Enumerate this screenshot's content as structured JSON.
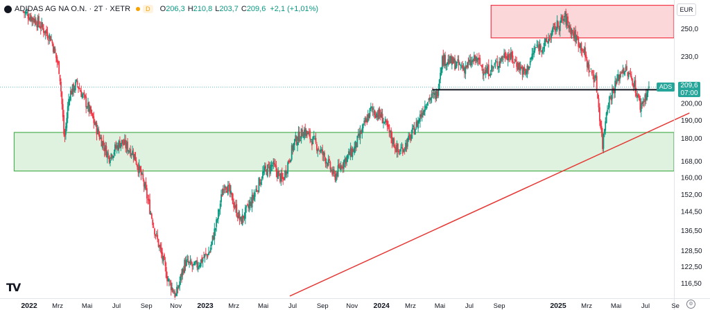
{
  "header": {
    "title": "ADIDAS AG NA O.N. · 2T · XETR",
    "badge": "D",
    "o_label": "O",
    "o_value": "206,3",
    "h_label": "H",
    "h_value": "210,8",
    "l_label": "L",
    "l_value": "203,7",
    "c_label": "C",
    "c_value": "209,6",
    "change": "+2,1 (+1,01%)"
  },
  "currency": "EUR",
  "price_tag": {
    "symbol": "ADS",
    "price": "209,6",
    "time": "07:00"
  },
  "colors": {
    "up": "#089981",
    "down": "#f23645",
    "green_zone": "#4caf50",
    "red_zone": "#f23645",
    "support": "#131722",
    "trend": "#e53935"
  },
  "chart_data": {
    "type": "candlestick",
    "y_axis_labels": [
      "250,0",
      "230,0",
      "200,00",
      "190,00",
      "180,00",
      "168,00",
      "160,00",
      "152,00",
      "144,50",
      "136,50",
      "128,50",
      "122,50",
      "116,50"
    ],
    "y_axis_values": [
      250,
      230,
      200,
      190,
      180,
      168,
      160,
      152,
      144.5,
      136.5,
      128.5,
      122.5,
      116.5
    ],
    "y_scale": "log",
    "x_axis_labels": [
      "2022",
      "Mrz",
      "Mai",
      "Jul",
      "Sep",
      "Nov",
      "2023",
      "Mrz",
      "Mai",
      "Jul",
      "Sep",
      "Nov",
      "2024",
      "Mrz",
      "Mai",
      "Jul",
      "Sep",
      "2025",
      "Mrz",
      "Mai",
      "Jul",
      "Se"
    ],
    "x_axis_bold": [
      "2022",
      "2023",
      "2024",
      "2025"
    ],
    "x_axis_dates": [
      "2022-01-01",
      "2022-03-01",
      "2022-05-01",
      "2022-07-01",
      "2022-09-01",
      "2022-11-01",
      "2023-01-01",
      "2023-03-01",
      "2023-05-01",
      "2023-07-01",
      "2023-09-01",
      "2023-11-01",
      "2024-01-01",
      "2024-03-01",
      "2024-05-01",
      "2024-07-01",
      "2024-09-01",
      "2025-01-01",
      "2025-03-01",
      "2025-05-01",
      "2025-07-01",
      "2025-09-01"
    ],
    "path_points": [
      [
        "2021-12-20",
        263
      ],
      [
        "2022-01-15",
        256
      ],
      [
        "2022-02-15",
        243
      ],
      [
        "2022-03-05",
        220
      ],
      [
        "2022-03-15",
        178
      ],
      [
        "2022-03-25",
        205
      ],
      [
        "2022-04-10",
        212
      ],
      [
        "2022-05-05",
        196
      ],
      [
        "2022-05-25",
        182
      ],
      [
        "2022-06-15",
        170
      ],
      [
        "2022-07-10",
        178
      ],
      [
        "2022-08-05",
        172
      ],
      [
        "2022-08-25",
        158
      ],
      [
        "2022-09-20",
        135
      ],
      [
        "2022-10-15",
        118
      ],
      [
        "2022-11-01",
        112
      ],
      [
        "2022-11-20",
        124
      ],
      [
        "2022-12-10",
        122
      ],
      [
        "2023-01-10",
        128
      ],
      [
        "2023-01-25",
        140
      ],
      [
        "2023-02-10",
        158
      ],
      [
        "2023-02-25",
        150
      ],
      [
        "2023-03-15",
        140
      ],
      [
        "2023-04-05",
        148
      ],
      [
        "2023-05-01",
        162
      ],
      [
        "2023-05-20",
        166
      ],
      [
        "2023-06-10",
        158
      ],
      [
        "2023-07-05",
        178
      ],
      [
        "2023-07-25",
        184
      ],
      [
        "2023-08-20",
        176
      ],
      [
        "2023-09-10",
        168
      ],
      [
        "2023-09-25",
        160
      ],
      [
        "2023-10-15",
        168
      ],
      [
        "2023-11-05",
        174
      ],
      [
        "2023-11-25",
        186
      ],
      [
        "2023-12-10",
        196
      ],
      [
        "2024-01-01",
        192
      ],
      [
        "2024-01-20",
        181
      ],
      [
        "2024-02-05",
        172
      ],
      [
        "2024-02-25",
        178
      ],
      [
        "2024-03-15",
        188
      ],
      [
        "2024-04-05",
        202
      ],
      [
        "2024-04-25",
        205
      ],
      [
        "2024-05-05",
        228
      ],
      [
        "2024-05-25",
        226
      ],
      [
        "2024-06-20",
        222
      ],
      [
        "2024-07-15",
        228
      ],
      [
        "2024-08-05",
        219
      ],
      [
        "2024-08-25",
        224
      ],
      [
        "2024-09-15",
        232
      ],
      [
        "2024-10-05",
        226
      ],
      [
        "2024-10-25",
        218
      ],
      [
        "2024-11-15",
        236
      ],
      [
        "2024-12-05",
        238
      ],
      [
        "2024-12-25",
        250
      ],
      [
        "2025-01-15",
        258
      ],
      [
        "2025-02-01",
        246
      ],
      [
        "2025-02-20",
        236
      ],
      [
        "2025-03-05",
        222
      ],
      [
        "2025-03-20",
        214
      ],
      [
        "2025-04-03",
        176
      ],
      [
        "2025-04-12",
        198
      ],
      [
        "2025-04-25",
        208
      ],
      [
        "2025-05-15",
        222
      ],
      [
        "2025-06-05",
        214
      ],
      [
        "2025-06-20",
        198
      ],
      [
        "2025-07-01",
        204
      ],
      [
        "2025-07-08",
        209.6
      ]
    ],
    "zones": [
      {
        "kind": "resistance",
        "from": "2024-08-15",
        "to": "2025-09-15",
        "y_low": 243,
        "y_high": 268
      },
      {
        "kind": "support",
        "from": "2021-12-01",
        "to": "2025-09-15",
        "y_low": 163,
        "y_high": 183
      }
    ],
    "horizontal_line": {
      "from": "2024-04-15",
      "to": "2025-09-01",
      "y": 208
    },
    "trend_line": {
      "from": [
        "2023-06-25",
        112
      ],
      "to": [
        "2025-09-30",
        194
      ]
    },
    "last": {
      "open": 206.3,
      "high": 210.8,
      "low": 203.7,
      "close": 209.6,
      "change": "+2,1 (+1,01%)"
    }
  }
}
